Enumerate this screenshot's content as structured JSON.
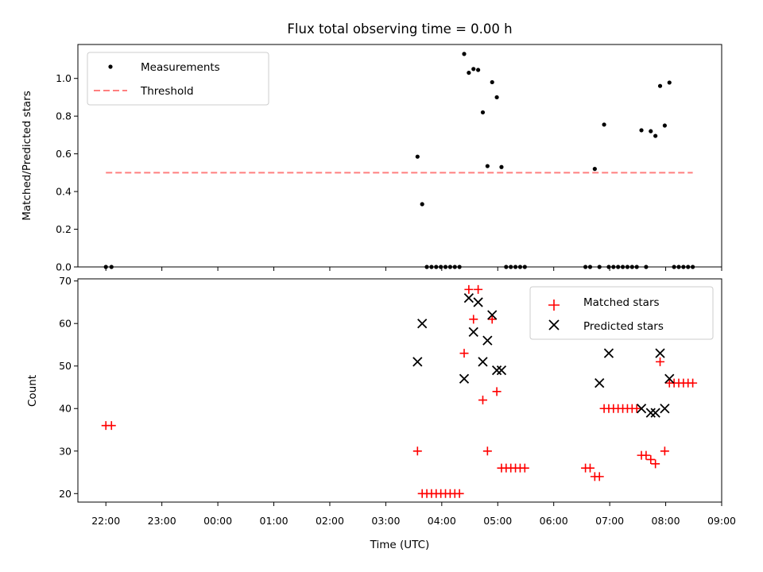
{
  "chart_data": {
    "title": "Flux total observing time = 0.00 h",
    "xlabel": "Time (UTC)",
    "x_ticks": [
      "22:00",
      "23:00",
      "00:00",
      "01:00",
      "02:00",
      "03:00",
      "04:00",
      "05:00",
      "06:00",
      "07:00",
      "08:00",
      "09:00"
    ],
    "x_range": [
      "21:30",
      "09:00"
    ],
    "panels": [
      {
        "type": "scatter",
        "ylabel": "Matched/Predicted stars",
        "ylim": [
          0,
          1.18
        ],
        "y_ticks": [
          "0.0",
          "0.2",
          "0.4",
          "0.6",
          "0.8",
          "1.0"
        ],
        "legend_position": "top-left",
        "series": [
          {
            "name": "Measurements",
            "color": "#000000",
            "marker": "dot",
            "x": [
              "22:00",
              "22:06",
              "03:34",
              "03:39",
              "03:44",
              "03:49",
              "03:54",
              "03:59",
              "04:04",
              "04:09",
              "04:14",
              "04:19",
              "04:24",
              "04:29",
              "04:34",
              "04:39",
              "04:44",
              "04:49",
              "04:54",
              "04:59",
              "05:04",
              "05:09",
              "05:14",
              "05:19",
              "05:24",
              "05:29",
              "06:34",
              "06:39",
              "06:44",
              "06:49",
              "06:54",
              "06:59",
              "07:04",
              "07:09",
              "07:14",
              "07:19",
              "07:24",
              "07:29",
              "07:34",
              "07:39",
              "07:44",
              "07:49",
              "07:54",
              "07:59",
              "08:04",
              "08:09",
              "08:14",
              "08:19",
              "08:24",
              "08:29"
            ],
            "y": [
              0,
              0,
              0.585,
              0.333,
              0,
              0,
              0,
              0,
              0,
              0,
              0,
              0,
              1.13,
              1.03,
              1.05,
              1.045,
              0.82,
              0.535,
              0.98,
              0.9,
              0.53,
              0,
              0,
              0,
              0,
              0,
              0,
              0,
              0.52,
              0,
              0.755,
              0,
              0,
              0,
              0,
              0,
              0,
              0,
              0.725,
              0,
              0.72,
              0.695,
              0.96,
              0.75,
              0.978,
              0,
              0,
              0,
              0,
              0
            ]
          },
          {
            "name": "Threshold",
            "color": "#ff7f7f",
            "style": "dashed",
            "x": [
              "22:00",
              "08:29"
            ],
            "y": [
              0.5,
              0.5
            ]
          }
        ]
      },
      {
        "type": "scatter",
        "ylabel": "Count",
        "ylim": [
          18,
          70.5
        ],
        "y_ticks": [
          "20",
          "30",
          "40",
          "50",
          "60",
          "70"
        ],
        "legend_position": "top-right",
        "series": [
          {
            "name": "Matched stars",
            "color": "#ff0000",
            "marker": "plus",
            "x": [
              "22:00",
              "22:06",
              "03:34",
              "03:39",
              "03:44",
              "03:49",
              "03:54",
              "03:59",
              "04:04",
              "04:09",
              "04:14",
              "04:19",
              "04:24",
              "04:29",
              "04:34",
              "04:39",
              "04:44",
              "04:49",
              "04:54",
              "04:59",
              "05:04",
              "05:09",
              "05:14",
              "05:19",
              "05:24",
              "05:29",
              "06:34",
              "06:39",
              "06:44",
              "06:49",
              "06:54",
              "06:59",
              "07:04",
              "07:09",
              "07:14",
              "07:19",
              "07:24",
              "07:29",
              "07:34",
              "07:39",
              "07:44",
              "07:49",
              "07:54",
              "07:59",
              "08:04",
              "08:09",
              "08:14",
              "08:19",
              "08:24",
              "08:29"
            ],
            "y": [
              36,
              36,
              30,
              20,
              20,
              20,
              20,
              20,
              20,
              20,
              20,
              20,
              53,
              68,
              61,
              68,
              42,
              30,
              61,
              44,
              26,
              26,
              26,
              26,
              26,
              26,
              26,
              26,
              24,
              24,
              40,
              40,
              40,
              40,
              40,
              40,
              40,
              40,
              29,
              29,
              28,
              27,
              51,
              30,
              46,
              46,
              46,
              46,
              46,
              46
            ]
          },
          {
            "name": "Predicted stars",
            "color": "#000000",
            "marker": "x",
            "x": [
              "03:34",
              "03:39",
              "04:24",
              "04:29",
              "04:34",
              "04:39",
              "04:44",
              "04:49",
              "04:54",
              "04:59",
              "05:04",
              "06:49",
              "06:59",
              "07:34",
              "07:44",
              "07:49",
              "07:54",
              "07:59",
              "08:04"
            ],
            "y": [
              51,
              60,
              47,
              66,
              58,
              65,
              51,
              56,
              62,
              49,
              49,
              46,
              53,
              40,
              39,
              39,
              53,
              40,
              47
            ]
          }
        ]
      }
    ]
  }
}
